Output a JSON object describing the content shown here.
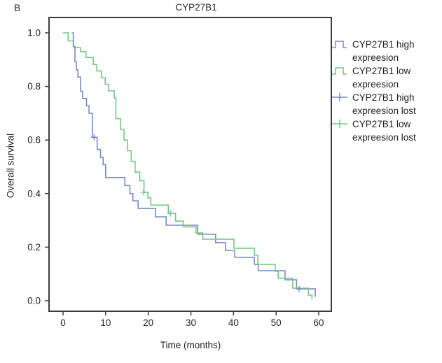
{
  "panel_label": "B",
  "chart_data": {
    "type": "line",
    "subtype": "kaplan-meier-step",
    "title": "CYP27B1",
    "xlabel": "Time (months)",
    "ylabel": "Overall survival",
    "x_ticks": [
      "0",
      "10",
      "20",
      "30",
      "40",
      "50",
      "60"
    ],
    "x_tick_values": [
      0,
      10,
      20,
      30,
      40,
      50,
      60
    ],
    "y_ticks": [
      "0.0",
      "0.2",
      "0.4",
      "0.6",
      "0.8",
      "1.0"
    ],
    "y_tick_values": [
      0.0,
      0.2,
      0.4,
      0.6,
      0.8,
      1.0
    ],
    "xlim": [
      -3.3,
      63
    ],
    "ylim": [
      -0.04,
      1.06
    ],
    "grid": false,
    "legend_position": "right-outside",
    "colors": {
      "high": "#7b88c6",
      "low": "#74c689",
      "axis": "#3c3c3c",
      "text": "#1f1f1f"
    },
    "series": [
      {
        "key": "high",
        "name": "CYP27B1 high expreesion",
        "color": "#7b88c6",
        "steps": [
          [
            2.0,
            1.0
          ],
          [
            2.4,
            0.95
          ],
          [
            2.8,
            0.893
          ],
          [
            3.1,
            0.862
          ],
          [
            3.5,
            0.835
          ],
          [
            4.1,
            0.782
          ],
          [
            4.6,
            0.755
          ],
          [
            5.5,
            0.728
          ],
          [
            6.1,
            0.7
          ],
          [
            6.9,
            0.61
          ],
          [
            8.0,
            0.565
          ],
          [
            8.8,
            0.535
          ],
          [
            9.4,
            0.508
          ],
          [
            10.0,
            0.46
          ],
          [
            14.5,
            0.43
          ],
          [
            15.7,
            0.4
          ],
          [
            16.4,
            0.373
          ],
          [
            17.6,
            0.345
          ],
          [
            21.7,
            0.313
          ],
          [
            24.2,
            0.282
          ],
          [
            31.6,
            0.248
          ],
          [
            35.8,
            0.217
          ],
          [
            38.1,
            0.188
          ],
          [
            40.3,
            0.162
          ],
          [
            44.9,
            0.136
          ],
          [
            45.8,
            0.112
          ],
          [
            52.1,
            0.078
          ],
          [
            54.8,
            0.044
          ],
          [
            59.2,
            0.015
          ]
        ]
      },
      {
        "key": "low",
        "name": "CYP27B1 low expreesion",
        "color": "#74c689",
        "steps": [
          [
            0.0,
            1.0
          ],
          [
            1.2,
            0.97
          ],
          [
            2.5,
            0.945
          ],
          [
            4.1,
            0.93
          ],
          [
            5.4,
            0.908
          ],
          [
            7.1,
            0.882
          ],
          [
            7.9,
            0.858
          ],
          [
            9.0,
            0.832
          ],
          [
            9.9,
            0.808
          ],
          [
            10.7,
            0.784
          ],
          [
            12.0,
            0.757
          ],
          [
            12.4,
            0.68
          ],
          [
            13.5,
            0.64
          ],
          [
            14.3,
            0.6
          ],
          [
            15.1,
            0.56
          ],
          [
            16.0,
            0.52
          ],
          [
            16.9,
            0.48
          ],
          [
            18.0,
            0.448
          ],
          [
            19.0,
            0.405
          ],
          [
            19.9,
            0.384
          ],
          [
            20.6,
            0.357
          ],
          [
            24.7,
            0.326
          ],
          [
            26.4,
            0.297
          ],
          [
            28.2,
            0.276
          ],
          [
            31.2,
            0.253
          ],
          [
            32.8,
            0.23
          ],
          [
            40.1,
            0.196
          ],
          [
            44.9,
            0.17
          ],
          [
            45.7,
            0.136
          ],
          [
            49.8,
            0.11
          ],
          [
            50.5,
            0.084
          ],
          [
            53.9,
            0.047
          ],
          [
            57.6,
            0.021
          ],
          [
            58.4,
            0.005
          ]
        ]
      }
    ],
    "censored": [
      {
        "key": "high",
        "name": "CYP27B1 high expreesion lost",
        "color": "#7b88c6",
        "points": [
          [
            7.3,
            0.61
          ],
          [
            55.4,
            0.044
          ]
        ]
      },
      {
        "key": "low",
        "name": "CYP27B1 low expreesion lost",
        "color": "#74c689",
        "points": [
          [
            18.9,
            0.405
          ],
          [
            25.2,
            0.326
          ]
        ]
      }
    ],
    "legend": [
      {
        "symbol": "step",
        "series": "high",
        "lines": [
          "CYP27B1 high",
          "expreesion"
        ]
      },
      {
        "symbol": "step",
        "series": "low",
        "lines": [
          "CYP27B1 low",
          "expreesion"
        ]
      },
      {
        "symbol": "cross",
        "series": "high",
        "lines": [
          "CYP27B1 high",
          "expreesion lost"
        ]
      },
      {
        "symbol": "cross",
        "series": "low",
        "lines": [
          "CYP27B1 low",
          "expreesion lost"
        ]
      }
    ]
  }
}
